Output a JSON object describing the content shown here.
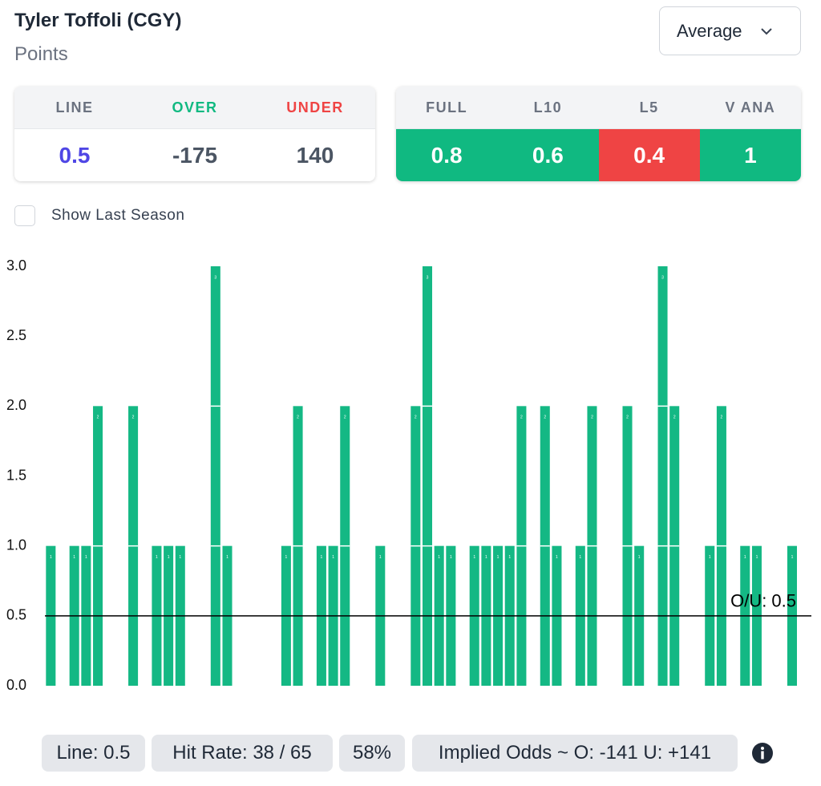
{
  "header": {
    "title": "Tyler Toffoli (CGY)",
    "subtitle": "Points",
    "dropdown": "Average"
  },
  "odds_table": {
    "headers": [
      "LINE",
      "OVER",
      "UNDER"
    ],
    "values": [
      "0.5",
      "-175",
      "140"
    ]
  },
  "averages_table": {
    "headers": [
      "FULL",
      "L10",
      "L5",
      "V ANA"
    ],
    "values": [
      "0.8",
      "0.6",
      "0.4",
      "1"
    ],
    "colors": [
      "#10b981",
      "#10b981",
      "#ef4444",
      "#10b981"
    ]
  },
  "checkbox": {
    "label": "Show Last Season",
    "checked": false
  },
  "chart_data": {
    "type": "bar",
    "categories": [
      null,
      null,
      null,
      null,
      null,
      null,
      null,
      null,
      null,
      null,
      null,
      null,
      null,
      null,
      null,
      null,
      null,
      null,
      null,
      null,
      null,
      null,
      null,
      null,
      null,
      null,
      null,
      null,
      null,
      null,
      null,
      null,
      null,
      null,
      null,
      null,
      null,
      null,
      null,
      null,
      null,
      null,
      null,
      null,
      null,
      null,
      null,
      null,
      null,
      null,
      null,
      null,
      null,
      null,
      null,
      null,
      null,
      null,
      null,
      null,
      null,
      null,
      null,
      null,
      null
    ],
    "values": [
      1,
      0,
      1,
      1,
      2,
      0,
      0,
      2,
      0,
      1,
      1,
      1,
      0,
      0,
      3,
      1,
      0,
      0,
      0,
      0,
      1,
      2,
      0,
      1,
      1,
      2,
      0,
      0,
      1,
      0,
      0,
      2,
      3,
      1,
      1,
      0,
      1,
      1,
      1,
      1,
      2,
      0,
      2,
      1,
      0,
      1,
      2,
      0,
      0,
      2,
      1,
      0,
      3,
      2,
      0,
      0,
      1,
      2,
      0,
      1,
      1,
      0,
      0,
      1,
      0
    ],
    "color": "#14b884",
    "ylim": [
      0,
      3
    ],
    "yticks": [
      {
        "value": 0,
        "label": "0.0"
      },
      0.5,
      {
        "value": 1,
        "label": "1.0"
      },
      1.5,
      {
        "value": 2,
        "label": "2.0"
      },
      2.5,
      {
        "value": 3,
        "label": "3.0"
      }
    ],
    "reference_line": {
      "value": 0.5,
      "label": "O/U: 0.5"
    }
  },
  "footer": {
    "chips": [
      "Line: 0.5",
      "Hit Rate: 38 / 65",
      "58%",
      "Implied Odds ~ O: -141 U: +141"
    ]
  }
}
